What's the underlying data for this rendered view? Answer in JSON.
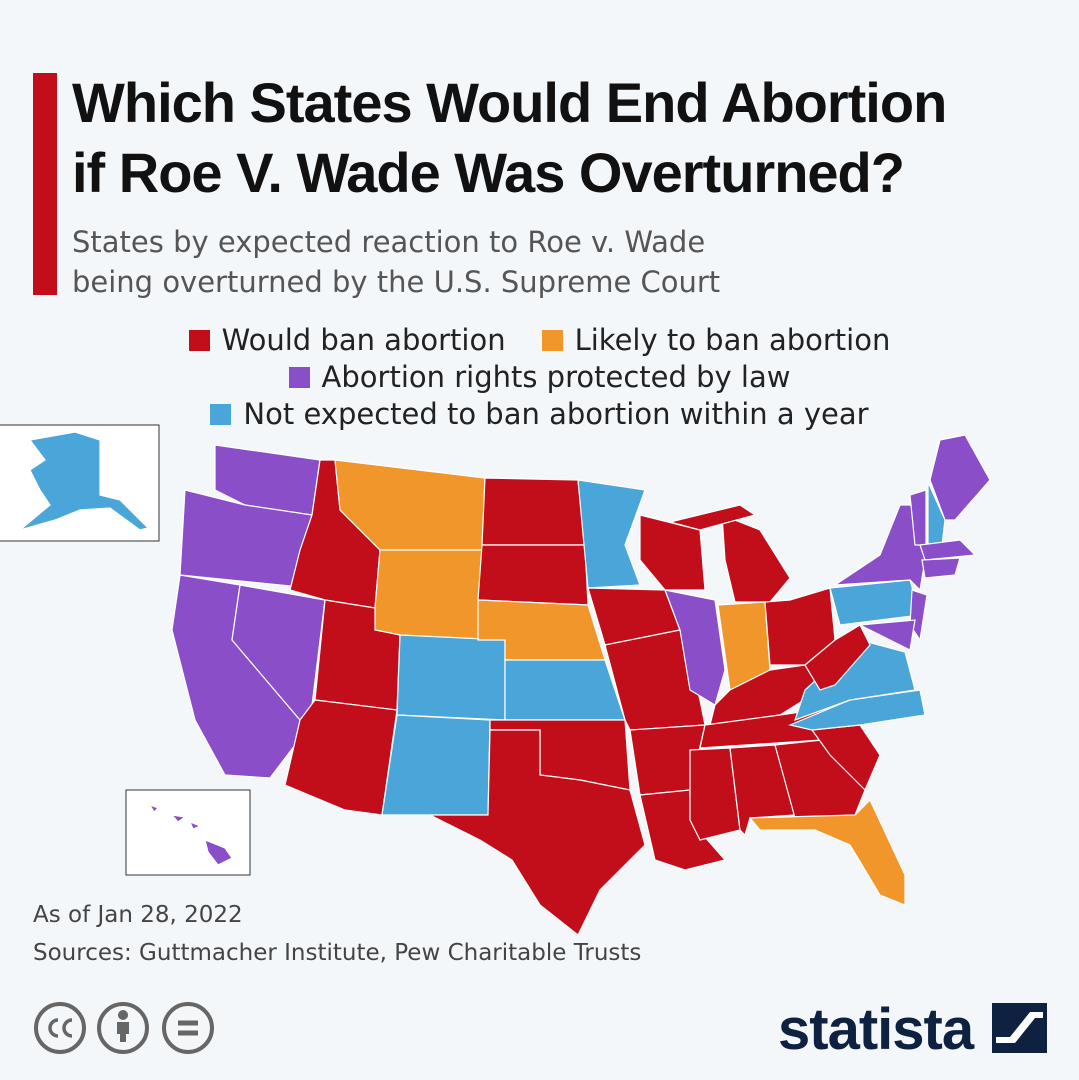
{
  "header": {
    "title_lines": [
      "Which States Would End Abortion",
      "if Roe V. Wade Was Overturned?"
    ],
    "subtitle_lines": [
      "States by expected reaction to Roe v. Wade",
      "being overturned by the U.S. Supreme Court"
    ]
  },
  "legend": [
    {
      "label": "Would ban abortion",
      "color": "#c20e1a"
    },
    {
      "label": "Likely to ban abortion",
      "color": "#f0962a"
    },
    {
      "label": "Abortion rights protected by law",
      "color": "#8a4ec9"
    },
    {
      "label": "Not expected to ban abortion within a year",
      "color": "#4aa6d8"
    }
  ],
  "footer": {
    "note": "As of Jan 28, 2022",
    "sources": "Sources: Guttmacher Institute, Pew Charitable Trusts",
    "brand": "statista"
  }
}
